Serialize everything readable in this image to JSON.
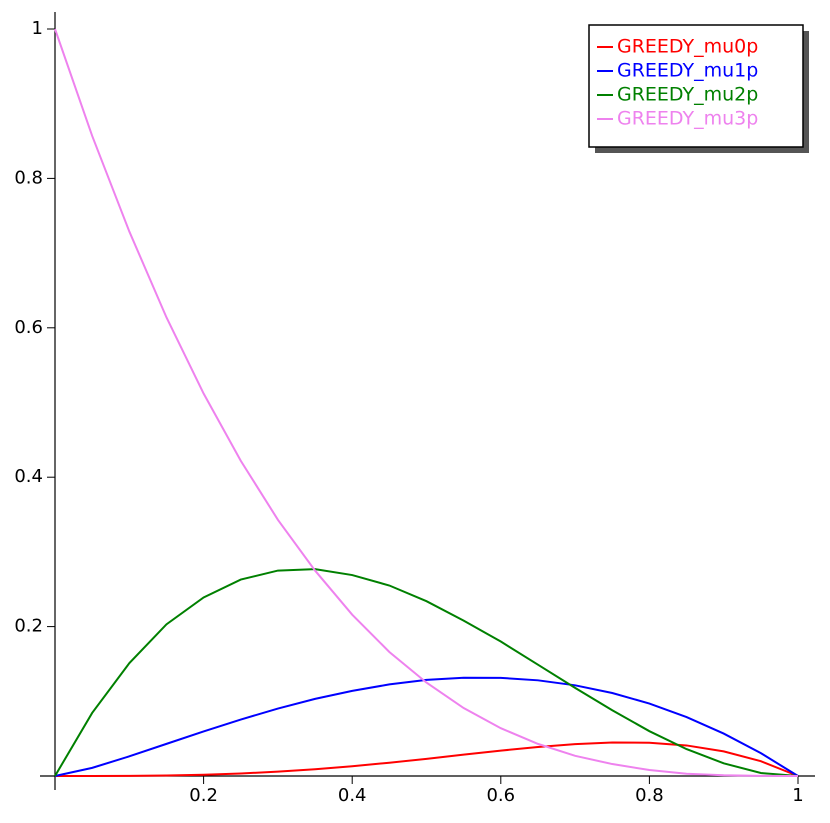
{
  "chart_data": {
    "type": "line",
    "x": [
      0,
      0.05,
      0.1,
      0.15,
      0.2,
      0.25,
      0.3,
      0.35,
      0.4,
      0.45,
      0.5,
      0.55,
      0.6,
      0.65,
      0.7,
      0.75,
      0.8,
      0.85,
      0.9,
      0.95,
      1
    ],
    "series": [
      {
        "name": "GREEDY_mu0p",
        "color": "#ff0000",
        "values": [
          0,
          0,
          0.0002,
          0.0007,
          0.0017,
          0.0034,
          0.0058,
          0.0091,
          0.0131,
          0.0178,
          0.023,
          0.0286,
          0.034,
          0.0388,
          0.0427,
          0.0448,
          0.0445,
          0.0409,
          0.033,
          0.0198,
          0
        ]
      },
      {
        "name": "GREEDY_mu1p",
        "color": "#0000ff",
        "values": [
          0,
          0.0109,
          0.0263,
          0.043,
          0.0597,
          0.0756,
          0.0903,
          0.1032,
          0.114,
          0.1226,
          0.1287,
          0.1315,
          0.1314,
          0.1281,
          0.1214,
          0.1111,
          0.097,
          0.0789,
          0.0568,
          0.0306,
          0
        ]
      },
      {
        "name": "GREEDY_mu2p",
        "color": "#008000",
        "values": [
          0,
          0.0844,
          0.151,
          0.203,
          0.239,
          0.263,
          0.275,
          0.277,
          0.269,
          0.255,
          0.234,
          0.208,
          0.18,
          0.149,
          0.118,
          0.088,
          0.06,
          0.036,
          0.017,
          0.004,
          0
        ]
      },
      {
        "name": "GREEDY_mu3p",
        "color": "#ee82ee",
        "values": [
          1,
          0.857,
          0.729,
          0.614,
          0.512,
          0.422,
          0.343,
          0.275,
          0.216,
          0.166,
          0.125,
          0.091,
          0.064,
          0.043,
          0.027,
          0.016,
          0.008,
          0.003,
          0.001,
          0.0001,
          0
        ]
      }
    ],
    "xlim": [
      0,
      1
    ],
    "xticks": [
      0.2,
      0.4,
      0.6,
      0.8,
      1
    ],
    "ylim": [
      0,
      1
    ],
    "yticks": [
      0.2,
      0.4,
      0.6,
      0.8,
      1
    ],
    "legend": "upper right"
  }
}
